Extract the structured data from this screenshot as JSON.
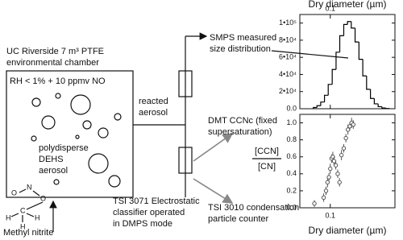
{
  "chamber": {
    "title": [
      "UC Riverside 7 m³ PTFE",
      "environmental chamber"
    ],
    "conditions": "RH < 1% + 10 ppmv NO",
    "aerosol": [
      "polydisperse",
      "DEHS",
      "aerosol"
    ]
  },
  "precursor": "Methyl nitrite",
  "molecule": [
    "O",
    "N",
    "O",
    "C",
    "H",
    "H",
    "H"
  ],
  "reacted": [
    "reacted",
    "aerosol"
  ],
  "classifier": [
    "TSI 3071 Electrostatic",
    "classifier operated",
    "in DMPS mode"
  ],
  "smps": [
    "SMPS measured",
    "size distribution"
  ],
  "ccnc": [
    "DMT CCNc (fixed",
    "supersaturation)"
  ],
  "ratio": {
    "numerator": "[CCN]",
    "denominator": "[CN]"
  },
  "cpc": [
    "TSI 3010 condensation",
    "particle counter"
  ],
  "chart_data": [
    {
      "type": "histogram",
      "xlabel": "Dry diameter (µm)",
      "xaxis_position": "top",
      "xlog": true,
      "color": "#000000",
      "bins": [
        0.06,
        0.067,
        0.075,
        0.084,
        0.094,
        0.106,
        0.119,
        0.133,
        0.15,
        0.168,
        0.188,
        0.211,
        0.237,
        0.266,
        0.298,
        0.335,
        0.376,
        0.422,
        0.473,
        0.531,
        0.596
      ],
      "values": [
        1400,
        3500,
        7800,
        15700,
        28400,
        45800,
        66000,
        85200,
        98400,
        101800,
        94100,
        77900,
        57700,
        38300,
        22700,
        12000,
        5700,
        2400,
        900,
        300
      ],
      "xlim": [
        0.04,
        0.7
      ],
      "xticks": [
        0.1
      ],
      "ylim": [
        0,
        110000
      ],
      "yticks": [
        {
          "value": 0,
          "label": "0.0"
        },
        {
          "value": 20000,
          "label": "2•10⁴"
        },
        {
          "value": 40000,
          "label": "4•10⁴"
        },
        {
          "value": 60000,
          "label": "6•10⁴"
        },
        {
          "value": 80000,
          "label": "8•10⁴"
        },
        {
          "value": 100000,
          "label": "1•10⁵"
        }
      ]
    },
    {
      "type": "scatter",
      "xlabel": "Dry diameter (µm)",
      "xaxis_position": "bottom",
      "xlog": true,
      "color": "#555555",
      "x": [
        0.062,
        0.082,
        0.088,
        0.092,
        0.096,
        0.1,
        0.104,
        0.108,
        0.112,
        0.118,
        0.125,
        0.132,
        0.14,
        0.15,
        0.16,
        0.17,
        0.18,
        0.19,
        0.2
      ],
      "y": [
        0.05,
        0.12,
        0.2,
        0.3,
        0.36,
        0.46,
        0.58,
        0.6,
        0.55,
        0.5,
        0.4,
        0.3,
        0.62,
        0.7,
        0.82,
        0.92,
        0.96,
        1.0,
        0.98
      ],
      "errors": [
        0.04,
        0.05,
        0.05,
        0.06,
        0.05,
        0.06,
        0.05,
        0.06,
        0.05,
        0.05,
        0.05,
        0.05,
        0.06,
        0.05,
        0.05,
        0.06,
        0.05,
        0.06,
        0.05
      ],
      "xlim": [
        0.04,
        0.7
      ],
      "xticks": [
        0.1
      ],
      "ylim": [
        0,
        1.1
      ],
      "yticks": [
        {
          "value": 0,
          "label": "0.0"
        },
        0.2,
        0.4,
        0.6,
        0.8,
        {
          "value": 1,
          "label": "1.0"
        }
      ]
    }
  ]
}
